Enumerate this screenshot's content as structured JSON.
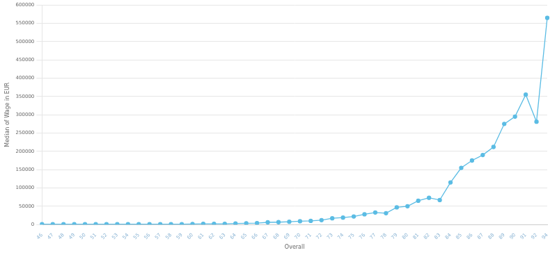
{
  "chart_data": {
    "type": "line",
    "x_label": "Overall",
    "y_label": "Median of Wage in EUR",
    "categories": [
      "46",
      "47",
      "48",
      "49",
      "50",
      "51",
      "52",
      "53",
      "54",
      "55",
      "56",
      "57",
      "58",
      "59",
      "60",
      "61",
      "62",
      "63",
      "64",
      "65",
      "66",
      "67",
      "68",
      "69",
      "70",
      "71",
      "72",
      "73",
      "74",
      "75",
      "76",
      "77",
      "78",
      "79",
      "80",
      "81",
      "82",
      "83",
      "84",
      "85",
      "86",
      "87",
      "88",
      "89",
      "90",
      "91",
      "92",
      "94"
    ],
    "values": [
      1000,
      1000,
      1000,
      1000,
      1000,
      1000,
      1000,
      1000,
      1000,
      1000,
      1000,
      1000,
      1000,
      1000,
      1500,
      2000,
      2000,
      2000,
      3000,
      3500,
      4000,
      6000,
      6500,
      7500,
      9000,
      10000,
      12000,
      17000,
      19000,
      22000,
      28000,
      33000,
      31000,
      47000,
      50000,
      65000,
      73000,
      67000,
      115000,
      155000,
      175000,
      190000,
      212000,
      275000,
      295000,
      355000,
      281000,
      565000
    ],
    "color": "#5bbce4",
    "marker": "circle",
    "line_style": "solid",
    "ylim": [
      0,
      600000
    ],
    "yticks": [
      0,
      50000,
      100000,
      150000,
      200000,
      250000,
      300000,
      350000,
      400000,
      450000,
      500000,
      550000,
      600000
    ],
    "grid": true
  }
}
